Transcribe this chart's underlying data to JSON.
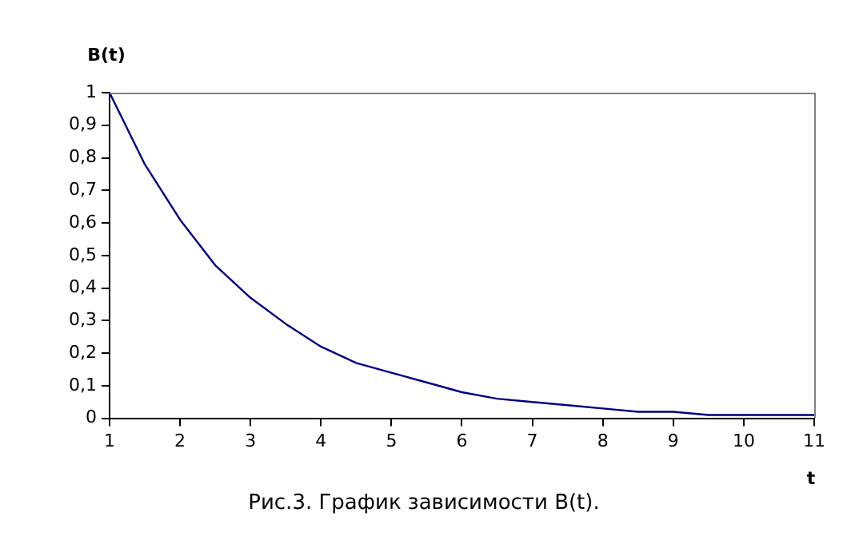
{
  "chart_data": {
    "type": "line",
    "ylabel": "B(t)",
    "xlabel": "t",
    "annotations": [
      "Рис.3. График зависимости B(t)."
    ],
    "x": [
      1,
      1.5,
      2,
      2.5,
      3,
      3.5,
      4,
      4.5,
      5,
      5.5,
      6,
      6.5,
      7,
      7.5,
      8,
      8.5,
      9,
      9.5,
      10,
      10.5,
      11
    ],
    "series": [
      {
        "color": "#000080",
        "values": [
          1,
          0.78,
          0.61,
          0.47,
          0.37,
          0.29,
          0.22,
          0.17,
          0.14,
          0.11,
          0.08,
          0.06,
          0.05,
          0.04,
          0.03,
          0.02,
          0.02,
          0.01,
          0.01,
          0.01,
          0.01
        ]
      }
    ],
    "xlim": [
      1,
      11
    ],
    "xticks": [
      1,
      2,
      3,
      4,
      5,
      6,
      7,
      8,
      9,
      10,
      11
    ],
    "ylim": [
      0,
      1
    ],
    "yticks": [
      0,
      {
        "value": 0.1,
        "label": "0,1"
      },
      {
        "value": 0.2,
        "label": "0,2"
      },
      {
        "value": 0.3,
        "label": "0,3"
      },
      {
        "value": 0.4,
        "label": "0,4"
      },
      {
        "value": 0.5,
        "label": "0,5"
      },
      {
        "value": 0.6,
        "label": "0,6"
      },
      {
        "value": 0.7,
        "label": "0,7"
      },
      {
        "value": 0.8,
        "label": "0,8"
      },
      {
        "value": 0.9,
        "label": "0,9"
      },
      1
    ],
    "grid": false,
    "legend": false,
    "marker": "none",
    "line_style": "solid"
  }
}
